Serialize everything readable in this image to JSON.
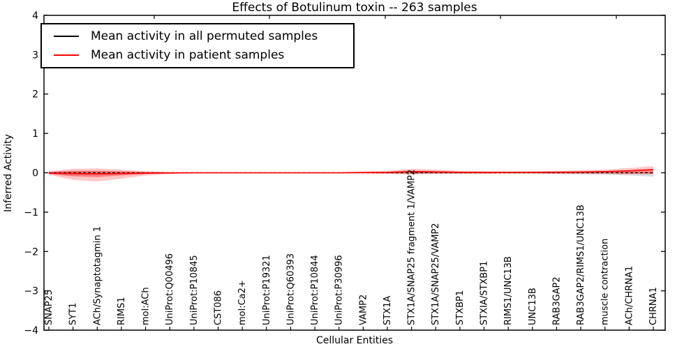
{
  "title": "Effects of Botulinum toxin -- 263 samples",
  "legend": {
    "items": [
      {
        "label": "Mean activity in all permuted samples",
        "color": "#000000"
      },
      {
        "label": "Mean activity in patient samples",
        "color": "#ff0000"
      }
    ]
  },
  "chart_data": {
    "type": "line",
    "title": "Effects of Botulinum toxin -- 263 samples",
    "xlabel": "Cellular Entities",
    "ylabel": "Inferred Activity",
    "ylim": [
      -4,
      4
    ],
    "yticks": [
      -4,
      -3,
      -2,
      -1,
      0,
      1,
      2,
      3,
      4
    ],
    "ytick_labels": [
      "−4",
      "−3",
      "−2",
      "−1",
      "0",
      "1",
      "2",
      "3",
      "4"
    ],
    "grid": false,
    "legend_position": "upper left",
    "categories": [
      "SNAP25",
      "SYT1",
      "ACh/Synaptotagmin 1",
      "RIMS1",
      "mol:ACh",
      "UniProt:Q00496",
      "UniProt:P10845",
      "CST086",
      "mol:Ca2+",
      "UniProt:P19321",
      "UniProt:Q60393",
      "UniProt:P10844",
      "UniProt:P30996",
      "VAMP2",
      "STX1A",
      "STX1A/SNAP25 fragment 1/VAMP2",
      "STX1A/SNAP25/VAMP2",
      "STXBP1",
      "STXIA/STXBP1",
      "RIMS1/UNC13B",
      "UNC13B",
      "RAB3GAP2",
      "RAB3GAP2/RIMS1/UNC13B",
      "muscle contraction",
      "ACh/CHRNA1",
      "CHRNA1"
    ],
    "series": [
      {
        "name": "Mean activity in all permuted samples",
        "color": "#000000",
        "style": "dashed",
        "values": [
          0,
          0,
          0,
          0,
          0,
          0,
          0,
          0,
          0,
          0,
          0,
          0,
          0,
          0,
          0,
          0,
          0,
          0,
          0,
          0,
          0,
          0,
          0,
          0,
          0,
          0
        ]
      },
      {
        "name": "Mean activity in patient samples",
        "color": "#ff0000",
        "style": "solid",
        "values": [
          -0.01,
          -0.02,
          -0.025,
          -0.02,
          -0.01,
          -0.005,
          0,
          0,
          0,
          0,
          0,
          0,
          0,
          0.005,
          0.01,
          0.03,
          0.02,
          0.01,
          0.01,
          0.01,
          0.01,
          0.015,
          0.02,
          0.03,
          0.05,
          0.08
        ]
      }
    ],
    "bands": [
      {
        "name": "permuted-std-band",
        "color": "rgba(0,0,0,0.13)",
        "upper": [
          0.02,
          0.05,
          0.05,
          0.03,
          0.02,
          0.01,
          0.01,
          0.01,
          0.01,
          0.01,
          0.01,
          0.01,
          0.01,
          0.01,
          0.02,
          0.06,
          0.05,
          0.03,
          0.02,
          0.02,
          0.02,
          0.02,
          0.03,
          0.04,
          0.03,
          0.02
        ],
        "lower": [
          -0.02,
          -0.06,
          -0.07,
          -0.04,
          -0.02,
          -0.01,
          -0.01,
          -0.01,
          -0.01,
          -0.01,
          -0.01,
          -0.01,
          -0.01,
          -0.01,
          -0.02,
          -0.03,
          -0.02,
          -0.02,
          -0.02,
          -0.02,
          -0.02,
          -0.03,
          -0.04,
          -0.05,
          -0.07,
          -0.1
        ]
      },
      {
        "name": "patient-std-band-outer",
        "color": "rgba(255,0,0,0.22)",
        "upper": [
          0.04,
          0.1,
          0.11,
          0.08,
          0.04,
          0.02,
          0.015,
          0.015,
          0.015,
          0.015,
          0.015,
          0.015,
          0.015,
          0.03,
          0.05,
          0.1,
          0.08,
          0.05,
          0.04,
          0.03,
          0.04,
          0.05,
          0.06,
          0.08,
          0.12,
          0.17
        ],
        "lower": [
          -0.05,
          -0.18,
          -0.22,
          -0.15,
          -0.07,
          -0.03,
          -0.02,
          -0.02,
          -0.02,
          -0.02,
          -0.02,
          -0.02,
          -0.02,
          -0.02,
          -0.03,
          -0.04,
          -0.03,
          -0.03,
          -0.03,
          -0.02,
          -0.02,
          -0.03,
          -0.03,
          -0.03,
          -0.04,
          -0.04
        ]
      },
      {
        "name": "patient-std-band-inner",
        "color": "rgba(255,0,0,0.35)",
        "upper": [
          0.02,
          0.05,
          0.05,
          0.04,
          0.02,
          0.01,
          0.008,
          0.008,
          0.008,
          0.008,
          0.008,
          0.008,
          0.008,
          0.015,
          0.025,
          0.05,
          0.04,
          0.025,
          0.02,
          0.015,
          0.02,
          0.025,
          0.03,
          0.04,
          0.06,
          0.1
        ],
        "lower": [
          -0.03,
          -0.09,
          -0.11,
          -0.07,
          -0.035,
          -0.015,
          -0.01,
          -0.01,
          -0.01,
          -0.01,
          -0.01,
          -0.01,
          -0.01,
          -0.01,
          -0.015,
          -0.02,
          -0.015,
          -0.015,
          -0.015,
          -0.01,
          -0.01,
          -0.015,
          -0.015,
          -0.015,
          -0.02,
          -0.02
        ]
      }
    ]
  }
}
